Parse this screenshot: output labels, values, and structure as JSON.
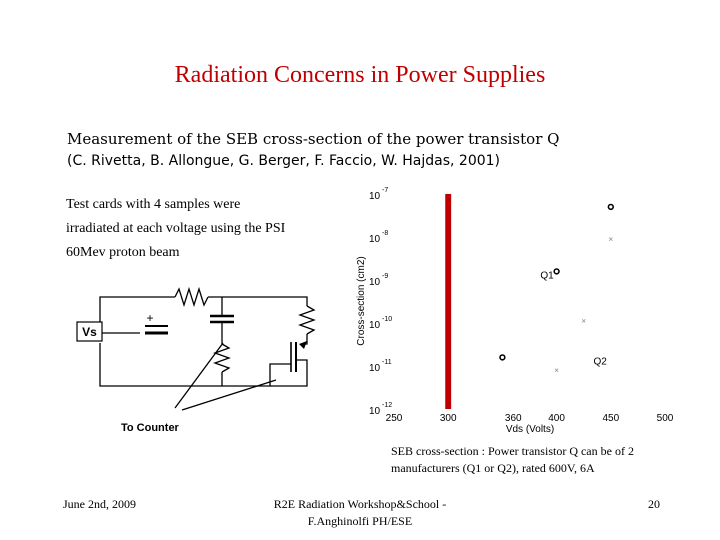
{
  "slide": {
    "title": "Radiation Concerns in Power Supplies",
    "subtitle_line1": "Measurement of the SEB cross-section of the power transistor Q",
    "subtitle_line2": "(C. Rivetta, B. Allongue, G. Berger, F. Faccio, W. Hajdas, 2001)",
    "body_lines": [
      "Test cards with 4 samples were",
      "irradiated at each voltage using the PSI",
      "60Mev proton beam"
    ],
    "caption_lines": [
      "SEB cross-section : Power transistor Q can be of 2",
      "manufacturers (Q1 or Q2), rated 600V, 6A"
    ]
  },
  "circuit": {
    "source_label": "Vs",
    "plus_sign": "+",
    "counter_label": "To Counter"
  },
  "footer": {
    "date": "June 2nd, 2009",
    "event_line1": "R2E Radiation Workshop&School -",
    "event_line2": "F.Anghinolfi PH/ESE",
    "page_number": "20"
  },
  "chart_data": {
    "type": "scatter",
    "xlabel": "Vds (Volts)",
    "ylabel": "Cross-section (cm2)",
    "xlim": [
      250,
      500
    ],
    "ylim_log10": [
      -12,
      -7
    ],
    "y_scale": "log",
    "x_ticks": [
      "250",
      "300",
      "360",
      "400",
      "450",
      "500"
    ],
    "y_ticks": [
      {
        "base": "10",
        "exp": "-7"
      },
      {
        "base": "10",
        "exp": "-8"
      },
      {
        "base": "10",
        "exp": "-9"
      },
      {
        "base": "10",
        "exp": "-10"
      },
      {
        "base": "10",
        "exp": "-11"
      },
      {
        "base": "10",
        "exp": "-12"
      }
    ],
    "vertical_lines_x": [
      298,
      299,
      300,
      301,
      302
    ],
    "vertical_line_color": "#c00000",
    "series": [
      {
        "name": "Q1",
        "marker": "circle",
        "points": [
          [
            350,
            -10.8
          ],
          [
            400,
            -8.8
          ],
          [
            450,
            -7.3
          ]
        ]
      },
      {
        "name": "Q2",
        "marker": "x",
        "points": [
          [
            400,
            -11.1
          ],
          [
            425,
            -9.95
          ],
          [
            450,
            -8.05
          ]
        ]
      }
    ]
  }
}
